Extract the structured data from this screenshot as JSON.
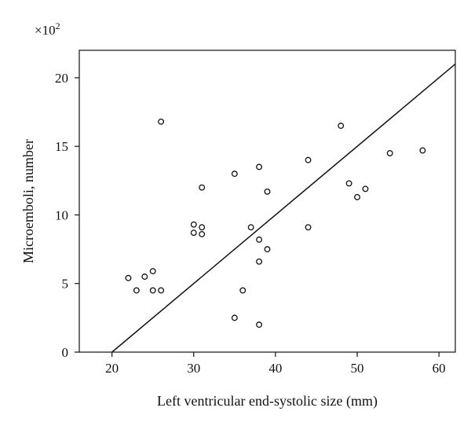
{
  "chart_data": {
    "type": "scatter",
    "xlabel": "Left ventricular end-systolic size (mm)",
    "ylabel": "Microemboli, number",
    "y_multiplier": {
      "base": "×10",
      "exponent": "2"
    },
    "xlim": [
      16,
      62
    ],
    "ylim": [
      0,
      22
    ],
    "xticks": [
      20,
      30,
      40,
      50,
      60
    ],
    "yticks": [
      0,
      5,
      10,
      15,
      20
    ],
    "grid": false,
    "marker": "open-circle",
    "points": [
      {
        "x": 22,
        "y": 5.4
      },
      {
        "x": 23,
        "y": 4.5
      },
      {
        "x": 24,
        "y": 5.5
      },
      {
        "x": 25,
        "y": 5.9
      },
      {
        "x": 25,
        "y": 4.5
      },
      {
        "x": 26,
        "y": 4.5
      },
      {
        "x": 26,
        "y": 16.8
      },
      {
        "x": 30,
        "y": 9.3
      },
      {
        "x": 30,
        "y": 8.7
      },
      {
        "x": 31,
        "y": 9.1
      },
      {
        "x": 31,
        "y": 8.6
      },
      {
        "x": 31,
        "y": 12.0
      },
      {
        "x": 35,
        "y": 13.0
      },
      {
        "x": 35,
        "y": 2.5
      },
      {
        "x": 36,
        "y": 4.5
      },
      {
        "x": 37,
        "y": 9.1
      },
      {
        "x": 38,
        "y": 13.5
      },
      {
        "x": 38,
        "y": 8.2
      },
      {
        "x": 38,
        "y": 6.6
      },
      {
        "x": 38,
        "y": 2.0
      },
      {
        "x": 39,
        "y": 11.7
      },
      {
        "x": 39,
        "y": 7.5
      },
      {
        "x": 44,
        "y": 14.0
      },
      {
        "x": 44,
        "y": 9.1
      },
      {
        "x": 48,
        "y": 16.5
      },
      {
        "x": 49,
        "y": 12.3
      },
      {
        "x": 50,
        "y": 11.3
      },
      {
        "x": 51,
        "y": 11.9
      },
      {
        "x": 54,
        "y": 14.5
      },
      {
        "x": 58,
        "y": 14.7
      }
    ],
    "regression_line": {
      "x": [
        20,
        62
      ],
      "y": [
        0,
        21.0
      ]
    }
  }
}
